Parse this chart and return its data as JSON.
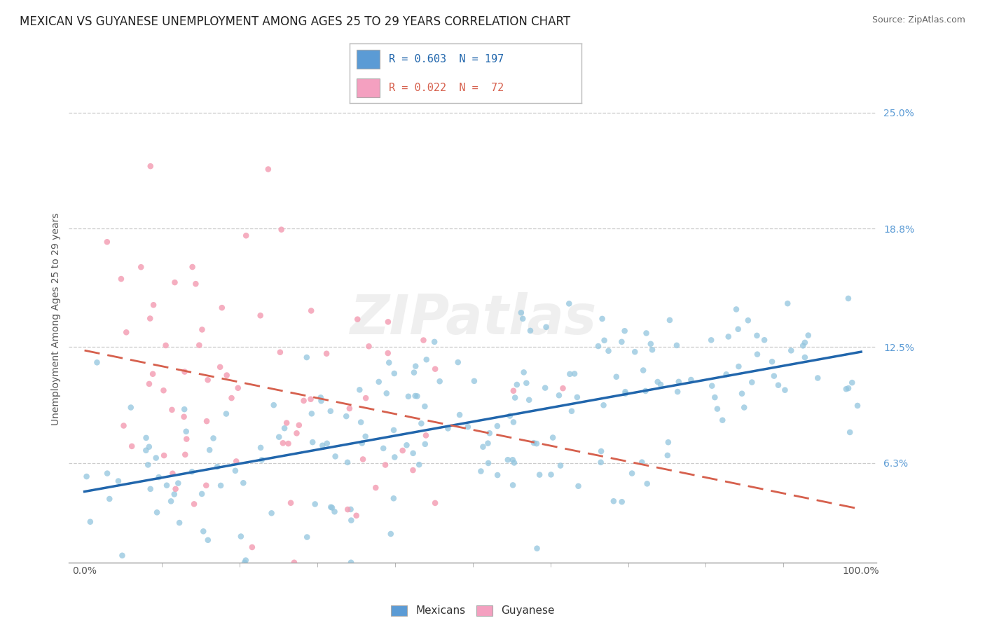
{
  "title": "MEXICAN VS GUYANESE UNEMPLOYMENT AMONG AGES 25 TO 29 YEARS CORRELATION CHART",
  "source": "Source: ZipAtlas.com",
  "ylabel": "Unemployment Among Ages 25 to 29 years",
  "ytick_labels": [
    "6.3%",
    "12.5%",
    "18.8%",
    "25.0%"
  ],
  "ytick_values": [
    0.063,
    0.125,
    0.188,
    0.25
  ],
  "xlim": [
    -0.02,
    1.02
  ],
  "ylim": [
    0.01,
    0.27
  ],
  "xtick_labels": [
    "0.0%",
    "100.0%"
  ],
  "xtick_values": [
    0.0,
    1.0
  ],
  "mexican_color": "#92c5de",
  "guyanese_color": "#f4a0b5",
  "mexican_line_color": "#2166ac",
  "guyanese_line_color": "#d6604d",
  "watermark_text": "ZIPatlas",
  "legend_mex_text": "R = 0.603  N = 197",
  "legend_guy_text": "R = 0.022  N =  72",
  "legend_mex_color": "#5b9bd5",
  "legend_guy_color": "#f4a0c0",
  "bottom_legend_mex": "Mexicans",
  "bottom_legend_guy": "Guyanese",
  "background_color": "#ffffff",
  "title_fontsize": 12,
  "source_fontsize": 9,
  "axis_label_fontsize": 10,
  "tick_fontsize": 10,
  "ytick_color": "#5b9bd5",
  "xtick_color": "#555555",
  "mexican_R": 0.603,
  "mexican_N": 197,
  "guyanese_R": 0.022,
  "guyanese_N": 72
}
